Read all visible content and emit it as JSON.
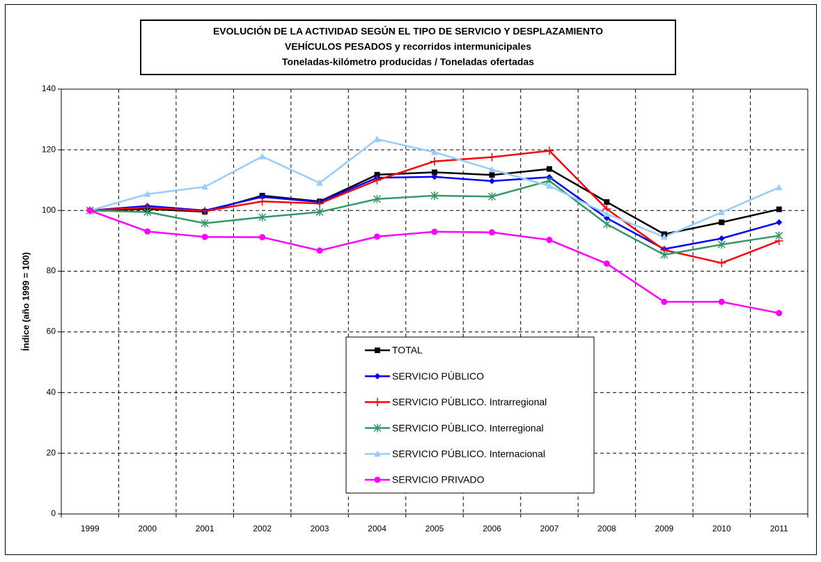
{
  "chart_data": {
    "type": "line",
    "title": "EVOLUCIÓN DE LA ACTIVIDAD SEGÚN EL TIPO DE SERVICIO Y DESPLAZAMIENTO",
    "subtitle": [
      "VEHÍCULOS PESADOS y recorridos intermunicipales",
      "Toneladas-kilómetro producidas / Toneladas ofertadas"
    ],
    "y_label": "Índice (año 1999 = 100)",
    "categories": [
      "1999",
      "2000",
      "2001",
      "2002",
      "2003",
      "2004",
      "2005",
      "2006",
      "2007",
      "2008",
      "2009",
      "2010",
      "2011"
    ],
    "ylim": [
      0,
      140
    ],
    "yticks": [
      0,
      20,
      40,
      60,
      80,
      100,
      120,
      140
    ],
    "grid": true,
    "series": [
      {
        "name": "TOTAL",
        "color": "#000000",
        "marker": "square",
        "values": [
          100,
          100.5,
          99.6,
          104.9,
          103,
          111.8,
          112.6,
          111.7,
          113.7,
          102.8,
          92.2,
          96.1,
          100.4
        ]
      },
      {
        "name": "SERVICIO PÚBLICO",
        "color": "#0000ff",
        "marker": "diamond",
        "values": [
          100,
          101.5,
          100,
          104.5,
          102.8,
          110.8,
          111.1,
          109.7,
          111,
          97.5,
          87.3,
          90.8,
          96.1
        ]
      },
      {
        "name": "SERVICIO PÚBLICO. Intrarregional",
        "color": "#ff0000",
        "marker": "plus",
        "values": [
          100,
          101,
          99.8,
          103,
          102.3,
          110,
          116.2,
          117.6,
          119.7,
          100.5,
          87,
          82.7,
          90
        ]
      },
      {
        "name": "SERVICIO PÚBLICO. Interregional",
        "color": "#339966",
        "marker": "asterisk",
        "values": [
          100,
          99.5,
          95.8,
          97.8,
          99.5,
          103.8,
          104.9,
          104.6,
          109.8,
          95.5,
          85.4,
          88.8,
          91.7
        ]
      },
      {
        "name": "SERVICIO PÚBLICO. Internacional",
        "color": "#99ccff",
        "marker": "triangle",
        "values": [
          100,
          105.4,
          107.8,
          117.8,
          109.1,
          123.5,
          119.2,
          113.5,
          108.1,
          98.9,
          91.3,
          99.4,
          107.6
        ]
      },
      {
        "name": "SERVICIO PRIVADO",
        "color": "#ff00ff",
        "marker": "circle",
        "values": [
          100,
          93.1,
          91.3,
          91.2,
          86.8,
          91.4,
          93,
          92.8,
          90.3,
          82.5,
          69.9,
          69.9,
          66.2
        ]
      }
    ]
  }
}
